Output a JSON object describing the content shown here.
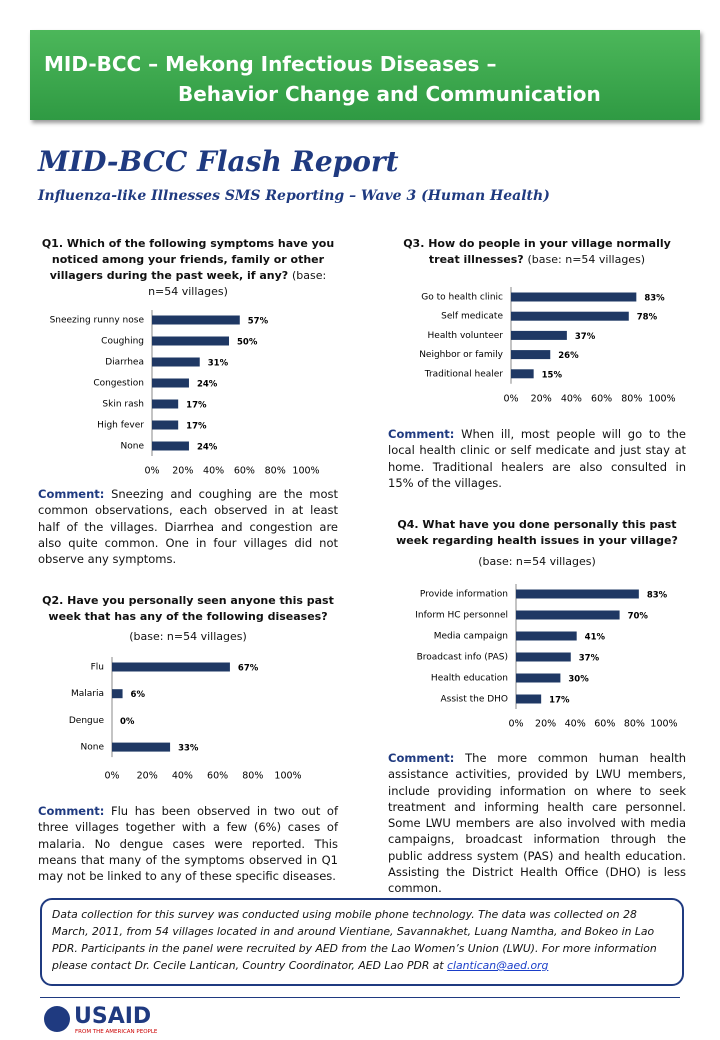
{
  "header": {
    "title_lines": [
      "MID-BCC – Mekong Infectious Diseases –",
      "Behavior Change and Communication"
    ]
  },
  "report": {
    "title": "MID-BCC Flash Report",
    "subtitle": "Influenza-like Illnesses SMS Reporting – Wave 3 (Human Health)"
  },
  "chart_data": [
    {
      "type": "bar",
      "orientation": "horizontal",
      "title": "Q1. Which of the following symptoms have you noticed among your friends, family or other villagers during the past week, if any?",
      "subtitle": "(base: n=54 villages)",
      "categories": [
        "Sneezing runny nose",
        "Coughing",
        "Diarrhea",
        "Congestion",
        "Skin rash",
        "High fever",
        "None"
      ],
      "values": [
        57,
        50,
        31,
        24,
        17,
        17,
        24
      ],
      "value_labels": [
        "57%",
        "50%",
        "31%",
        "24%",
        "17%",
        "17%",
        "24%"
      ],
      "color": "#1f3864",
      "xlim": [
        0,
        100
      ],
      "xticks": [
        {
          "value": 0,
          "label": "0%"
        },
        {
          "value": 20,
          "label": "20%"
        },
        {
          "value": 40,
          "label": "40%"
        },
        {
          "value": 60,
          "label": "60%"
        },
        {
          "value": 80,
          "label": "80%"
        },
        {
          "value": 100,
          "label": "100%"
        }
      ],
      "comment": {
        "label": "Comment:",
        "text": "Sneezing and coughing are the most common observations, each observed in at least half of the villages. Diarrhea and congestion are also quite common. One in four villages did not observe any symptoms."
      }
    },
    {
      "type": "bar",
      "orientation": "horizontal",
      "title": "Q2. Have you personally seen anyone this past week that has any of the following diseases?",
      "subtitle": "(base: n=54 villages)",
      "categories": [
        "Flu",
        "Malaria",
        "Dengue",
        "None"
      ],
      "values": [
        67,
        6,
        0,
        33
      ],
      "value_labels": [
        "67%",
        "6%",
        "0%",
        "33%"
      ],
      "color": "#1f3864",
      "xlim": [
        0,
        100
      ],
      "xticks": [
        {
          "value": 0,
          "label": "0%"
        },
        {
          "value": 20,
          "label": "20%"
        },
        {
          "value": 40,
          "label": "40%"
        },
        {
          "value": 60,
          "label": "60%"
        },
        {
          "value": 80,
          "label": "80%"
        },
        {
          "value": 100,
          "label": "100%"
        }
      ],
      "comment": {
        "label": "Comment:",
        "text": "Flu has been observed in two out of three villages together with a few (6%) cases of malaria. No dengue cases were reported. This means that many of the symptoms observed in Q1 may not be linked to any of these specific diseases."
      }
    },
    {
      "type": "bar",
      "orientation": "horizontal",
      "title": "Q3. How do people in your village normally treat illnesses?",
      "subtitle": "(base: n=54 villages)",
      "categories": [
        "Go to health clinic",
        "Self medicate",
        "Health volunteer",
        "Neighbor or family",
        "Traditional healer"
      ],
      "values": [
        83,
        78,
        37,
        26,
        15
      ],
      "value_labels": [
        "83%",
        "78%",
        "37%",
        "26%",
        "15%"
      ],
      "color": "#1f3864",
      "xlim": [
        0,
        100
      ],
      "xticks": [
        {
          "value": 0,
          "label": "0%"
        },
        {
          "value": 20,
          "label": "20%"
        },
        {
          "value": 40,
          "label": "40%"
        },
        {
          "value": 60,
          "label": "60%"
        },
        {
          "value": 80,
          "label": "80%"
        },
        {
          "value": 100,
          "label": "100%"
        }
      ],
      "comment": {
        "label": "Comment:",
        "text": "When ill, most people will go to the local health clinic or self medicate and just stay at home. Traditional healers are also consulted in 15% of the villages."
      }
    },
    {
      "type": "bar",
      "orientation": "horizontal",
      "title": "Q4. What have you done personally this past week regarding health issues in your village?",
      "subtitle": "(base: n=54 villages)",
      "categories": [
        "Provide information",
        "Inform HC personnel",
        "Media campaign",
        "Broadcast info (PAS)",
        "Health education",
        "Assist the DHO"
      ],
      "values": [
        83,
        70,
        41,
        37,
        30,
        17
      ],
      "value_labels": [
        "83%",
        "70%",
        "41%",
        "37%",
        "30%",
        "17%"
      ],
      "color": "#1f3864",
      "xlim": [
        0,
        100
      ],
      "xticks": [
        {
          "value": 0,
          "label": "0%"
        },
        {
          "value": 20,
          "label": "20%"
        },
        {
          "value": 40,
          "label": "40%"
        },
        {
          "value": 60,
          "label": "60%"
        },
        {
          "value": 80,
          "label": "80%"
        },
        {
          "value": 100,
          "label": "100%"
        }
      ],
      "comment": {
        "label": "Comment:",
        "text": "The more common human health assistance activities, provided by LWU members, include providing information on where to seek treatment and informing health care personnel. Some LWU members are also involved with media campaigns, broadcast information through the public address system (PAS) and health education. Assisting the District Health Office (DHO) is less common."
      }
    }
  ],
  "footer": {
    "text": "Data collection for this survey was conducted using mobile phone technology. The data was collected on 28 March, 2011, from 54 villages located in and around Vientiane, Savannakhet, Luang Namtha, and Bokeo in Lao PDR. Participants in the panel were recruited by AED from the Lao Women’s Union (LWU). For more information please contact Dr. Cecile Lantican, Country Coordinator, AED Lao PDR at",
    "email": "clantican@aed.org"
  },
  "logo": {
    "name": "USAID",
    "tagline": "FROM THE AMERICAN PEOPLE"
  }
}
